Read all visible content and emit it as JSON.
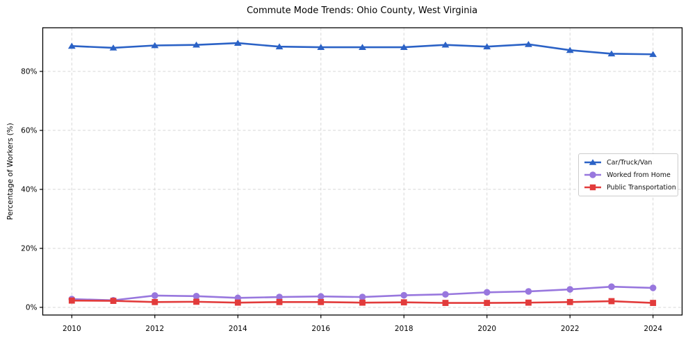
{
  "chart_data": {
    "type": "line",
    "title": "Commute Mode Trends: Ohio County, West Virginia",
    "xlabel": "",
    "ylabel": "Percentage of Workers (%)",
    "x": [
      2010,
      2011,
      2012,
      2013,
      2014,
      2015,
      2016,
      2017,
      2018,
      2019,
      2020,
      2021,
      2022,
      2023,
      2024
    ],
    "series": [
      {
        "name": "Car/Truck/Van",
        "color": "#2b62c6",
        "marker": "triangle",
        "values": [
          88.6,
          88.0,
          88.8,
          89.0,
          89.6,
          88.4,
          88.2,
          88.2,
          88.2,
          89.0,
          88.4,
          89.2,
          87.2,
          86.0,
          85.8
        ]
      },
      {
        "name": "Worked from Home",
        "color": "#9877de",
        "marker": "circle",
        "values": [
          2.8,
          2.4,
          4.0,
          3.8,
          3.2,
          3.5,
          3.7,
          3.5,
          4.1,
          4.4,
          5.1,
          5.4,
          6.1,
          7.0,
          6.6
        ]
      },
      {
        "name": "Public Transportation",
        "color": "#e23b3b",
        "marker": "square",
        "values": [
          2.3,
          2.2,
          1.8,
          1.9,
          1.6,
          1.8,
          1.8,
          1.6,
          1.7,
          1.5,
          1.5,
          1.6,
          1.8,
          2.1,
          1.5
        ]
      }
    ],
    "x_ticks": [
      2010,
      2012,
      2014,
      2016,
      2018,
      2020,
      2022,
      2024
    ],
    "x_tick_labels": [
      "2010",
      "2012",
      "2014",
      "2016",
      "2018",
      "2020",
      "2022",
      "2024"
    ],
    "y_ticks": [
      0,
      20,
      40,
      60,
      80
    ],
    "y_tick_labels": [
      "0%",
      "20%",
      "40%",
      "60%",
      "80%"
    ],
    "xlim": [
      2009.3,
      2024.7
    ],
    "ylim": [
      -2.6,
      94.8
    ],
    "grid": true,
    "legend_position": "center-right"
  }
}
